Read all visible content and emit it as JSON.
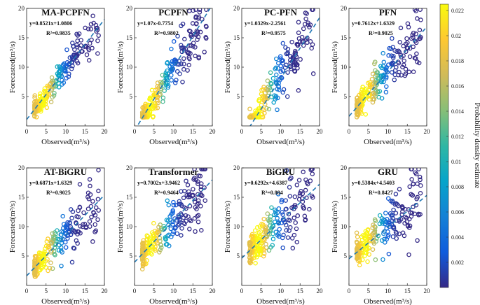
{
  "figure": {
    "colorbar": {
      "label": "Probability density estimate",
      "range": [
        0,
        0.0225
      ],
      "ticks": [
        "0.002",
        "0.004",
        "0.006",
        "0.008",
        "0.01",
        "0.012",
        "0.014",
        "0.016",
        "0.018",
        "0.02",
        "0.022"
      ],
      "tick_values": [
        0.002,
        0.004,
        0.006,
        0.008,
        0.01,
        0.012,
        0.014,
        0.016,
        0.018,
        0.02,
        0.022
      ],
      "colormap": [
        "#352a87",
        "#0f5cdd",
        "#1481d6",
        "#06a4ca",
        "#2eb7a4",
        "#87bf77",
        "#d1bb59",
        "#fec832",
        "#f9fb0e"
      ]
    }
  },
  "chart_data": [
    {
      "type": "scatter",
      "title": "MA-PCPFN",
      "equation_text": "y=0.8521x+1.0806",
      "r2_text": "R²=0.9835",
      "slope": 0.8521,
      "intercept": 1.0806,
      "xlabel": "Observed(m³/s)",
      "ylabel": "Forecasted(m³/s)",
      "xlim": [
        0,
        20
      ],
      "ylim": [
        0,
        20
      ],
      "xticks": [
        "0",
        "5",
        "10",
        "15",
        "20"
      ],
      "yticks": [
        "5",
        "10",
        "15",
        "20"
      ],
      "fit_line_color": "#1f77b4",
      "spread": 1.3,
      "seed": 11
    },
    {
      "type": "scatter",
      "title": "PCPFN",
      "equation_text": "y=1.07x-0.7754",
      "r2_text": "R²=0.9802",
      "slope": 1.07,
      "intercept": -0.7754,
      "xlabel": "Observed(m³/s)",
      "ylabel": "Forecasted(m³/s)",
      "xlim": [
        0,
        20
      ],
      "ylim": [
        0,
        20
      ],
      "xticks": [
        "0",
        "5",
        "10",
        "15",
        "20"
      ],
      "yticks": [
        "5",
        "10",
        "15",
        "20"
      ],
      "fit_line_color": "#1f77b4",
      "spread": 1.6,
      "seed": 23
    },
    {
      "type": "scatter",
      "title": "PC-PFN",
      "equation_text": "y=1.0329x-2.2561",
      "r2_text": "R²=0.9575",
      "slope": 1.0329,
      "intercept": -2.2561,
      "xlabel": "Observed(m³/s)",
      "ylabel": "Forecasted(m³/s)",
      "xlim": [
        0,
        20
      ],
      "ylim": [
        0,
        20
      ],
      "xticks": [
        "0",
        "5",
        "10",
        "15",
        "20"
      ],
      "yticks": [
        "5",
        "10",
        "15",
        "20"
      ],
      "fit_line_color": "#1f77b4",
      "spread": 2.0,
      "seed": 37
    },
    {
      "type": "scatter",
      "title": "PFN",
      "equation_text": "y=0.7612x+1.6329",
      "r2_text": "R²=0.9025",
      "slope": 0.7612,
      "intercept": 1.6329,
      "xlabel": "Observed(m³/s)",
      "ylabel": "Forecasted(m³/s)",
      "xlim": [
        0,
        20
      ],
      "ylim": [
        0,
        20
      ],
      "xticks": [
        "0",
        "5",
        "10",
        "15",
        "20"
      ],
      "yticks": [
        "5",
        "10",
        "15",
        "20"
      ],
      "fit_line_color": "#1f77b4",
      "spread": 1.9,
      "seed": 41
    },
    {
      "type": "scatter",
      "title": "AT-BiGRU",
      "equation_text": "y=0.6871x+1.6329",
      "r2_text": "R²=0.9025",
      "slope": 0.6871,
      "intercept": 1.6329,
      "xlabel": "Observed(m³/s)",
      "ylabel": "Forecasted(m³/s)",
      "xlim": [
        0,
        20
      ],
      "ylim": [
        0,
        20
      ],
      "xticks": [
        "0",
        "5",
        "10",
        "15",
        "20"
      ],
      "yticks": [
        "5",
        "10",
        "15",
        "20"
      ],
      "fit_line_color": "#1f77b4",
      "spread": 1.7,
      "seed": 53
    },
    {
      "type": "scatter",
      "title": "Transformer",
      "equation_text": "y=0.7002x+3.9462",
      "r2_text": "R²=0.9464",
      "slope": 0.7002,
      "intercept": 3.9462,
      "xlabel": "Observed(m³/s)",
      "ylabel": "Forecasted(m³/s)",
      "xlim": [
        0,
        20
      ],
      "ylim": [
        0,
        20
      ],
      "xticks": [
        "0",
        "5",
        "10",
        "15",
        "20"
      ],
      "yticks": [
        "5",
        "10",
        "15",
        "20"
      ],
      "fit_line_color": "#1f77b4",
      "spread": 1.8,
      "seed": 67
    },
    {
      "type": "scatter",
      "title": "BiGRU",
      "equation_text": "y=0.6292x+4.6387",
      "r2_text": "R²=0.884",
      "slope": 0.6292,
      "intercept": 4.6387,
      "xlabel": "Observed(m³/s)",
      "ylabel": "Forecasted(m³/s)",
      "xlim": [
        0,
        20
      ],
      "ylim": [
        0,
        20
      ],
      "xticks": [
        "0",
        "5",
        "10",
        "15",
        "20"
      ],
      "yticks": [
        "5",
        "10",
        "15",
        "20"
      ],
      "fit_line_color": "#1f77b4",
      "spread": 2.1,
      "seed": 79
    },
    {
      "type": "scatter",
      "title": "GRU",
      "equation_text": "y=0.5384x+4.5403",
      "r2_text": "R²=0.8427",
      "slope": 0.5384,
      "intercept": 4.5403,
      "xlabel": "Observed(m³/s)",
      "ylabel": "Forecasted(m³/s)",
      "xlim": [
        0,
        20
      ],
      "ylim": [
        0,
        20
      ],
      "xticks": [
        "0",
        "5",
        "10",
        "15",
        "20"
      ],
      "yticks": [
        "5",
        "10",
        "15",
        "20"
      ],
      "fit_line_color": "#1f77b4",
      "spread": 2.2,
      "seed": 97
    }
  ]
}
